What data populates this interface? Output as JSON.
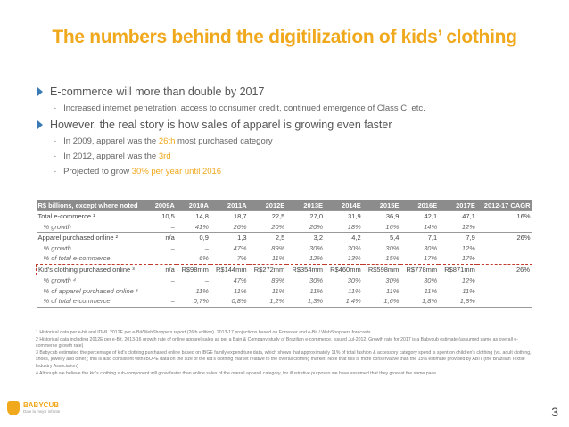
{
  "title": "The numbers behind the digitilization of kids’ clothing",
  "bullets": {
    "b1": "E-commerce will more than double by 2017",
    "b1_sub": "Increased internet penetration, access to consumer credit, continued emergence of Class C, etc.",
    "b2": "However, the real story is how sales of apparel is growing even faster",
    "s1_pre": "In 2009, apparel was the ",
    "s1_hl": "26th",
    "s1_post": " most purchased category",
    "s2_pre": "In 2012, apparel was the ",
    "s2_hl": "3rd",
    "s3_pre": "Projected to grow ",
    "s3_hl": "30% per year until 2016"
  },
  "table": {
    "headers": [
      "R$ billions, except where noted",
      "2009A",
      "2010A",
      "2011A",
      "2012E",
      "2013E",
      "2014E",
      "2015E",
      "2016E",
      "2017E",
      "2012-17 CAGR"
    ],
    "rows": [
      [
        "Total e-commerce ¹",
        "10,5",
        "14,8",
        "18,7",
        "22,5",
        "27,0",
        "31,9",
        "36,9",
        "42,1",
        "47,1",
        "16%"
      ],
      [
        "% growth",
        "–",
        "41%",
        "26%",
        "20%",
        "20%",
        "18%",
        "16%",
        "14%",
        "12%",
        ""
      ],
      [
        "Apparel purchased online ²",
        "n/a",
        "0,9",
        "1,3",
        "2,5",
        "3,2",
        "4,2",
        "5,4",
        "7,1",
        "7,9",
        "26%"
      ],
      [
        "% growth",
        "–",
        "–",
        "47%",
        "89%",
        "30%",
        "30%",
        "30%",
        "30%",
        "12%",
        ""
      ],
      [
        "% of total e-commerce",
        "–",
        "6%",
        "7%",
        "11%",
        "12%",
        "13%",
        "15%",
        "17%",
        "17%",
        ""
      ],
      [
        "Kid's clothing purchased online ³",
        "n/a",
        "R$98mm",
        "R$144mm",
        "R$272mm",
        "R$354mm",
        "R$460mm",
        "R$598mm",
        "R$778mm",
        "R$871mm",
        "26%"
      ],
      [
        "% growth ⁴",
        "–",
        "–",
        "47%",
        "89%",
        "30%",
        "30%",
        "30%",
        "30%",
        "12%",
        ""
      ],
      [
        "% of apparel purchased online ³",
        "–",
        "11%",
        "11%",
        "11%",
        "11%",
        "11%",
        "11%",
        "11%",
        "11%",
        ""
      ],
      [
        "% of total e-commerce",
        "–",
        "0,7%",
        "0,8%",
        "1,2%",
        "1,3%",
        "1,4%",
        "1,6%",
        "1,8%",
        "1,8%",
        ""
      ]
    ]
  },
  "notes": [
    "1 Historical data per e-bit and IDMI. 2012E per e-Bit/WebShoppers report (26th edition). 2013-17 projections based on Forrester and e-Bit / WebShoppers forecasts",
    "2 Historical data including 2012E per e-Bit. 2013-16 growth rate of online apparel sales as per a Bain & Company study of Brazilian e-commerce, issued Jul-2012. Growth rate for 2017 is a Babycub estimate (assumed same as overall e-commerce growth rate)",
    "3 Babycub estimated the percentage of kid's clothing purchased online based on IBGE family expenditure data, which shows that approximately 11% of total fashion & accessory category spend is spent on children's clothing (vs. adult clothing, shoes, jewelry and other); this is also consistent with IBOPE data on the size of the kid's clothing market relative to the overall clothing market. Note that this is more conservative than the 15% estimate provided by ABIT (the Brazilian Textile Industry Association)",
    "4 Although we believe the kid's clothing sub-component will grow faster than online sales of the overall apparel category, for illustrative purposes we have assumed that they grow at the same pace"
  ],
  "logo": {
    "name": "BABYCUB",
    "tagline": "Dale la mejor infante"
  },
  "page_number": "3",
  "colors": {
    "accent": "#f0a81c",
    "bullet_arrow": "#3a7bb5",
    "table_header": "#8c8c8c",
    "highlight_border": "#c0392b"
  },
  "icons": {
    "bullet": "triangle-right-icon",
    "logo": "bear-icon"
  }
}
